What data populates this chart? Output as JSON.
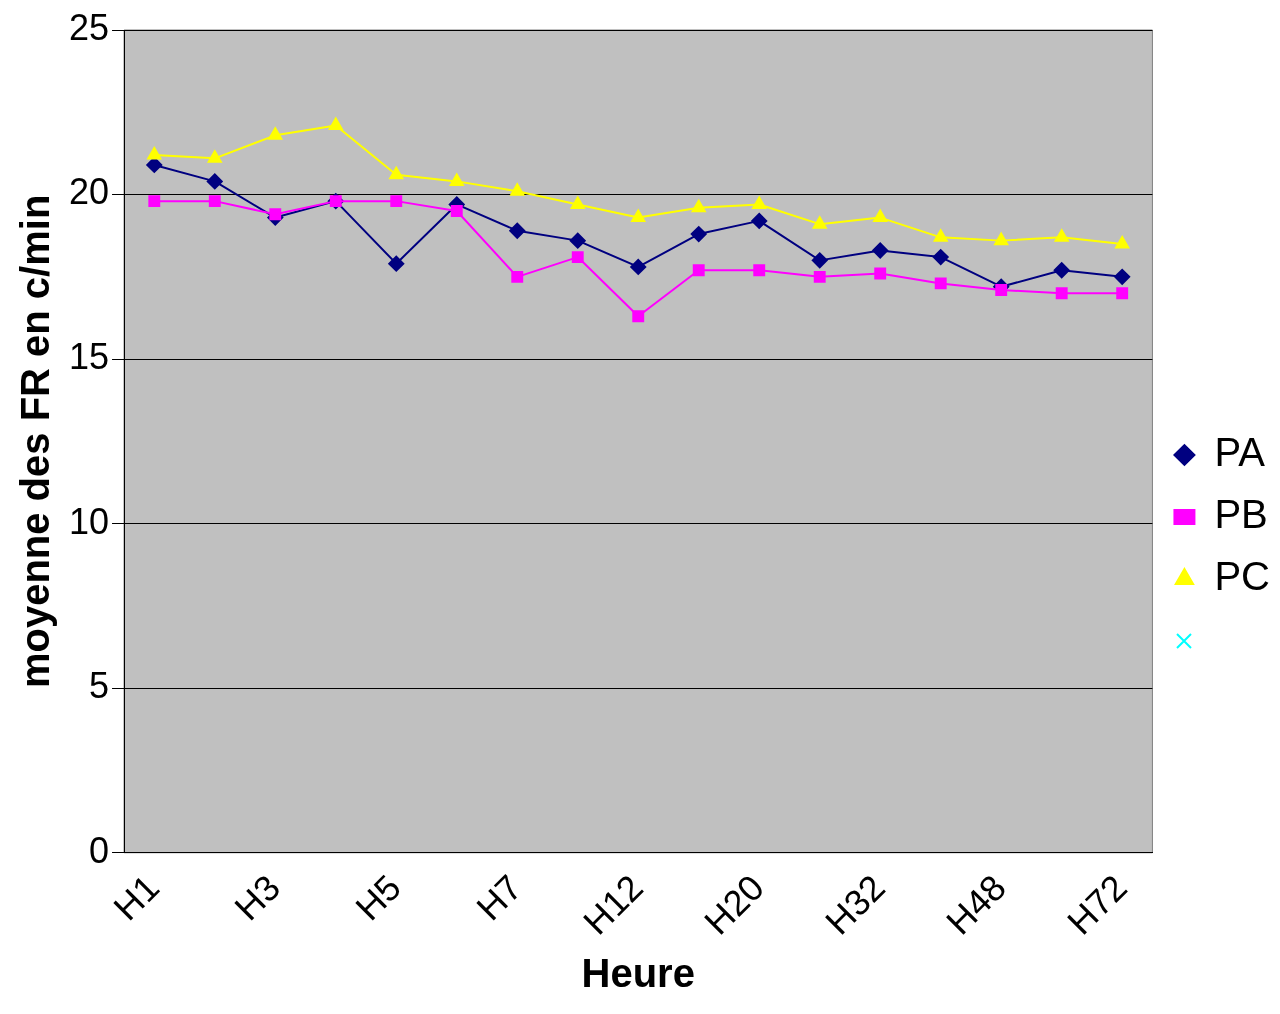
{
  "chart_data": {
    "type": "line",
    "xlabel": "Heure",
    "ylabel": "moyenne des FR en c/min",
    "categories": [
      "H1",
      null,
      "H3",
      null,
      "H5",
      null,
      "H7",
      null,
      "H12",
      null,
      "H20",
      null,
      "H32",
      null,
      "H48",
      null,
      "H72"
    ],
    "series": [
      {
        "name": "PA",
        "color": "#000080",
        "marker": "diamond",
        "values": [
          20.9,
          20.4,
          19.3,
          19.8,
          17.9,
          19.7,
          18.9,
          18.6,
          17.8,
          18.8,
          19.2,
          18.0,
          18.3,
          18.1,
          17.2,
          17.7,
          17.5
        ]
      },
      {
        "name": "PB",
        "color": "#ff00ff",
        "marker": "square",
        "values": [
          19.8,
          19.8,
          19.4,
          19.8,
          19.8,
          19.5,
          17.5,
          18.1,
          16.3,
          17.7,
          17.7,
          17.5,
          17.6,
          17.3,
          17.1,
          17.0,
          17.0
        ]
      },
      {
        "name": "PC",
        "color": "#ffff00",
        "marker": "triangle",
        "values": [
          21.2,
          21.1,
          21.8,
          22.1,
          20.6,
          20.4,
          20.1,
          19.7,
          19.3,
          19.6,
          19.7,
          19.1,
          19.3,
          18.7,
          18.6,
          18.7,
          18.5
        ]
      }
    ],
    "ylim": [
      0,
      25
    ],
    "yticks": [
      0,
      5,
      10,
      15,
      20,
      25
    ],
    "grid": "y",
    "legend": "right",
    "line_style": "solid"
  }
}
